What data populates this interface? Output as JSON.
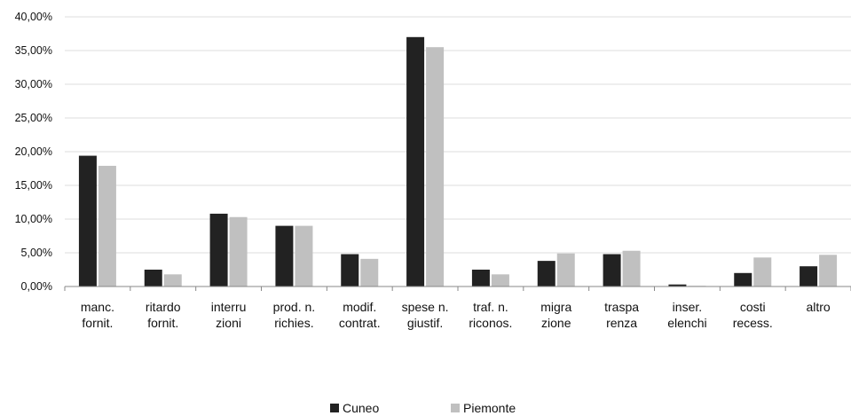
{
  "colors": {
    "cuneo": "#222222",
    "piemonte": "#c0c0c0",
    "axis": "#888888",
    "grid": "#dcdcdc"
  },
  "legend": {
    "series1": "Cuneo",
    "series2": "Piemonte"
  },
  "chart_data": {
    "type": "bar",
    "title": "",
    "xlabel": "",
    "ylabel": "",
    "ylim": [
      0,
      40
    ],
    "yticks": [
      "0,00%",
      "5,00%",
      "10,00%",
      "15,00%",
      "20,00%",
      "25,00%",
      "30,00%",
      "35,00%",
      "40,00%"
    ],
    "grid": true,
    "legend_position": "bottom",
    "categories": [
      [
        "manc.",
        "fornit."
      ],
      [
        "ritardo",
        "fornit."
      ],
      [
        "interru",
        "zioni"
      ],
      [
        "prod. n.",
        "richies."
      ],
      [
        "modif.",
        "contrat."
      ],
      [
        "spese n.",
        "giustif."
      ],
      [
        "traf. n.",
        "riconos."
      ],
      [
        "migra",
        "zione"
      ],
      [
        "traspa",
        "renza"
      ],
      [
        "inser.",
        "elenchi"
      ],
      [
        "costi",
        "recess."
      ],
      [
        "altro"
      ]
    ],
    "series": [
      {
        "name": "Cuneo",
        "values": [
          19.4,
          2.5,
          10.8,
          9.0,
          4.8,
          37.0,
          2.5,
          3.8,
          4.8,
          0.3,
          2.0,
          3.0
        ]
      },
      {
        "name": "Piemonte",
        "values": [
          17.9,
          1.8,
          10.3,
          9.0,
          4.1,
          35.5,
          1.8,
          4.9,
          5.3,
          0.1,
          4.3,
          4.7
        ]
      }
    ]
  }
}
